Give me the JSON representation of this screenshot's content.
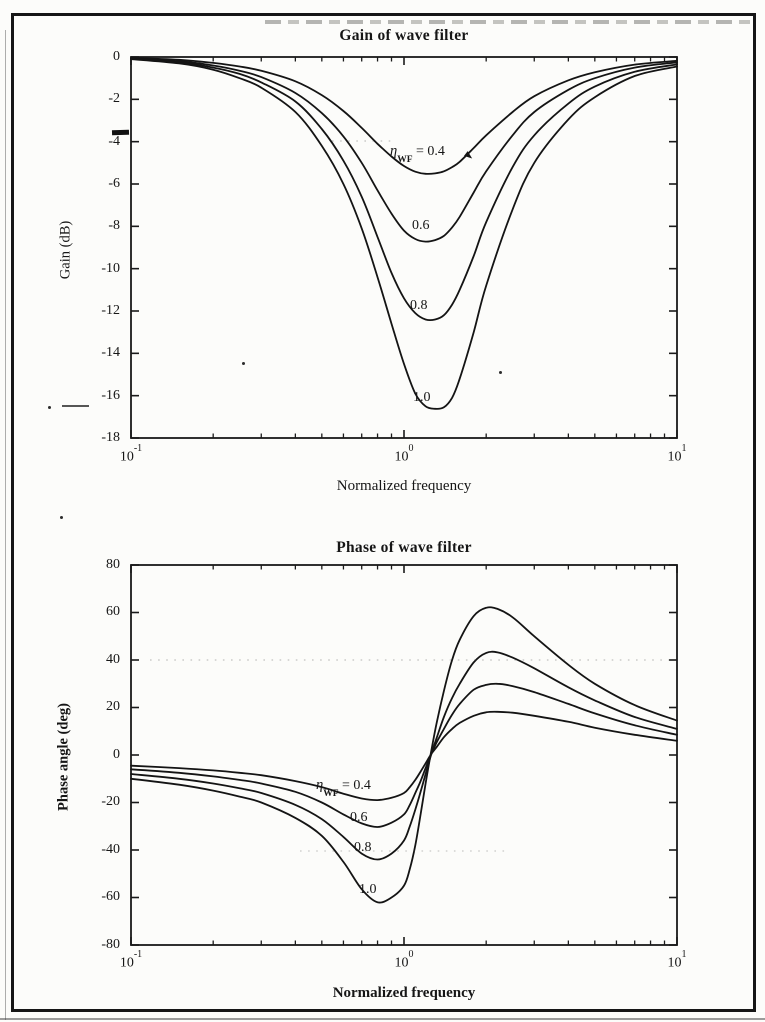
{
  "figure": {
    "ink_color": "#1a1a1a",
    "paper_color": "#fcfcfa",
    "curve_color": "#141414"
  },
  "chart_data": [
    {
      "type": "line",
      "title": "Gain of wave filter",
      "xlabel": "Normalized frequency",
      "ylabel": "Gain (dB)",
      "xscale": "log",
      "xlim": [
        0.1,
        10
      ],
      "ylim": [
        -18,
        0
      ],
      "grid": false,
      "legend_position": "inline curve labels",
      "xticks": [
        {
          "base": "10",
          "exp": "-1",
          "value": 0.1
        },
        {
          "base": "10",
          "exp": "0",
          "value": 1
        },
        {
          "base": "10",
          "exp": "1",
          "value": 10
        }
      ],
      "ytick_values": [
        0,
        -2,
        -4,
        -6,
        -8,
        -10,
        -12,
        -14,
        -16,
        -18
      ],
      "ytick_labels": [
        "0",
        "-2",
        "-4",
        "-6",
        "-8",
        "-10",
        "-12",
        "-14",
        "-16",
        "-18"
      ],
      "curve_labels": [
        {
          "sym": "η",
          "sub": "WF",
          "suffix": " = 0.4"
        },
        {
          "text": "0.6"
        },
        {
          "text": "0.8"
        },
        {
          "text": "1.0"
        }
      ],
      "x": [
        0.1,
        0.15,
        0.2,
        0.25,
        0.3,
        0.4,
        0.5,
        0.6,
        0.7,
        0.8,
        0.9,
        1.0,
        1.1,
        1.2,
        1.3,
        1.4,
        1.5,
        1.6,
        1.8,
        2.0,
        2.5,
        3.0,
        4.0,
        5.0,
        7.0,
        10
      ],
      "series": [
        {
          "name": "eta_WF = 0.4",
          "values": [
            -0.05,
            -0.13,
            -0.28,
            -0.45,
            -0.65,
            -1.15,
            -1.8,
            -2.55,
            -3.35,
            -4.1,
            -4.7,
            -5.15,
            -5.42,
            -5.52,
            -5.5,
            -5.4,
            -5.2,
            -4.95,
            -4.3,
            -3.7,
            -2.6,
            -1.85,
            -1.1,
            -0.72,
            -0.36,
            -0.18
          ]
        },
        {
          "name": "eta_WF = 0.6",
          "values": [
            -0.07,
            -0.2,
            -0.4,
            -0.65,
            -0.95,
            -1.7,
            -2.65,
            -3.75,
            -5.0,
            -6.3,
            -7.4,
            -8.2,
            -8.6,
            -8.72,
            -8.65,
            -8.45,
            -8.05,
            -7.55,
            -6.4,
            -5.4,
            -3.7,
            -2.6,
            -1.55,
            -1.0,
            -0.5,
            -0.25
          ]
        },
        {
          "name": "eta_WF = 0.8",
          "values": [
            -0.08,
            -0.25,
            -0.5,
            -0.8,
            -1.2,
            -2.1,
            -3.4,
            -4.9,
            -6.6,
            -8.5,
            -10.2,
            -11.4,
            -12.1,
            -12.4,
            -12.4,
            -12.2,
            -11.7,
            -11.0,
            -9.4,
            -7.8,
            -5.2,
            -3.7,
            -2.2,
            -1.4,
            -0.7,
            -0.35
          ]
        },
        {
          "name": "eta_WF = 1.0",
          "values": [
            -0.1,
            -0.3,
            -0.6,
            -1.0,
            -1.45,
            -2.6,
            -4.2,
            -6.0,
            -8.1,
            -10.4,
            -12.6,
            -14.5,
            -15.9,
            -16.5,
            -16.62,
            -16.55,
            -16.1,
            -15.2,
            -13.0,
            -10.8,
            -7.2,
            -5.0,
            -2.95,
            -1.9,
            -0.9,
            -0.45
          ]
        }
      ]
    },
    {
      "type": "line",
      "title": "Phase of wave filter",
      "xlabel": "Normalized frequency",
      "ylabel": "Phase angle (deg)",
      "xscale": "log",
      "xlim": [
        0.1,
        10
      ],
      "ylim": [
        -80,
        80
      ],
      "grid": false,
      "legend_position": "inline curve labels",
      "xticks": [
        {
          "base": "10",
          "exp": "-1",
          "value": 0.1
        },
        {
          "base": "10",
          "exp": "0",
          "value": 1
        },
        {
          "base": "10",
          "exp": "1",
          "value": 10
        }
      ],
      "ytick_values": [
        80,
        60,
        40,
        20,
        0,
        -20,
        -40,
        -60,
        -80
      ],
      "ytick_labels": [
        "80",
        "60",
        "40",
        "20",
        "0",
        "-20",
        "-40",
        "-60",
        "-80"
      ],
      "curve_labels": [
        {
          "sym": "η",
          "sub": "WF",
          "suffix": " = 0.4"
        },
        {
          "text": "0.6"
        },
        {
          "text": "0.8"
        },
        {
          "text": "1.0"
        }
      ],
      "x": [
        0.1,
        0.15,
        0.2,
        0.25,
        0.3,
        0.4,
        0.5,
        0.6,
        0.7,
        0.8,
        0.9,
        1.0,
        1.05,
        1.1,
        1.15,
        1.2,
        1.26,
        1.32,
        1.4,
        1.5,
        1.6,
        1.8,
        2.0,
        2.2,
        2.5,
        3.0,
        4.0,
        5.0,
        7.0,
        10
      ],
      "series": [
        {
          "name": "eta_WF = 0.4",
          "values": [
            -4.5,
            -5.5,
            -6.5,
            -7.5,
            -8.5,
            -11,
            -13.5,
            -16.3,
            -18.3,
            -19,
            -18,
            -16,
            -13.5,
            -10.5,
            -7,
            -3.5,
            0.5,
            3.5,
            7.5,
            11,
            13.5,
            16.5,
            18,
            18.2,
            17.8,
            16.5,
            14,
            11.5,
            8.5,
            6
          ]
        },
        {
          "name": "eta_WF = 0.6",
          "values": [
            -6,
            -7.5,
            -9,
            -10.5,
            -12,
            -15.5,
            -20,
            -25,
            -28.8,
            -30.3,
            -28.5,
            -25,
            -21,
            -16,
            -11,
            -5.5,
            0.5,
            5.5,
            11,
            17,
            21.5,
            27.5,
            29.5,
            30,
            29,
            26.5,
            21.5,
            17.5,
            12.5,
            8.5
          ]
        },
        {
          "name": "eta_WF = 0.8",
          "values": [
            -8,
            -10,
            -12,
            -14,
            -16,
            -21,
            -27,
            -34.5,
            -41.5,
            -44,
            -41.5,
            -36,
            -30,
            -23,
            -15.5,
            -8,
            0.5,
            7.5,
            16,
            24,
            30,
            39,
            43,
            43.2,
            41,
            36.5,
            28.5,
            23,
            16,
            11
          ]
        },
        {
          "name": "eta_WF = 1.0",
          "values": [
            -10,
            -12.5,
            -15,
            -17.5,
            -20,
            -26.5,
            -34,
            -45,
            -56.5,
            -62,
            -60,
            -55,
            -48,
            -38,
            -25,
            -12,
            2,
            14,
            27,
            40,
            48.5,
            58.5,
            62,
            61.5,
            58,
            50,
            38,
            30,
            21,
            14.5
          ]
        }
      ]
    }
  ]
}
